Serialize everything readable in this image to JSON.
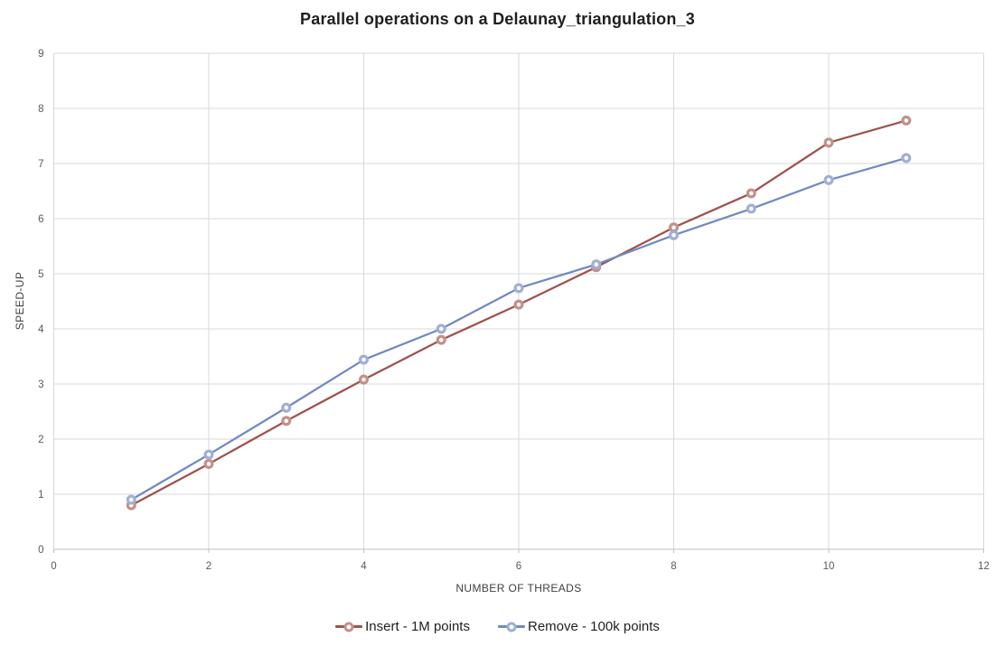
{
  "chart_data": {
    "type": "line",
    "title": "Parallel operations on a Delaunay_triangulation_3",
    "xlabel": "NUMBER OF THREADS",
    "ylabel": "SPEED-UP",
    "x": [
      1,
      2,
      3,
      4,
      5,
      6,
      7,
      8,
      9,
      10,
      11
    ],
    "series": [
      {
        "name": "Insert - 1M points",
        "values": [
          0.8,
          1.55,
          2.33,
          3.08,
          3.8,
          4.44,
          5.12,
          5.84,
          6.46,
          7.38,
          7.78
        ],
        "line_color": "#A0524C",
        "marker_color": "#C3908A"
      },
      {
        "name": "Remove - 100k points",
        "values": [
          0.9,
          1.72,
          2.57,
          3.44,
          4.0,
          4.74,
          5.17,
          5.7,
          6.18,
          6.7,
          7.1
        ],
        "line_color": "#7289C2",
        "marker_color": "#9FAFD8"
      }
    ],
    "xlim": [
      0,
      12
    ],
    "ylim": [
      0,
      9
    ],
    "xticks": [
      0,
      2,
      4,
      6,
      8,
      10,
      12
    ],
    "yticks": [
      0,
      1,
      2,
      3,
      4,
      5,
      6,
      7,
      8,
      9
    ],
    "grid": true,
    "legend_position": "bottom",
    "marker_style": "donut",
    "colors": {
      "grid": "#D9D9D9",
      "axis": "#BFBFBF",
      "tick_label": "#595959",
      "axis_title": "#404040",
      "title": "#1F1F1F",
      "background": "#FFFFFF"
    }
  }
}
